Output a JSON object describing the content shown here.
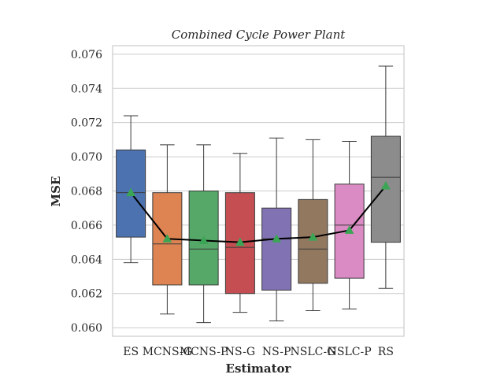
{
  "chart_data": {
    "type": "box",
    "title": "Combined Cycle Power Plant",
    "xlabel": "Estimator",
    "ylabel": "MSE",
    "ylim": [
      0.0595,
      0.0765
    ],
    "yticks": [
      0.06,
      0.062,
      0.064,
      0.066,
      0.068,
      0.07,
      0.072,
      0.074,
      0.076
    ],
    "ytick_labels": [
      "0.060",
      "0.062",
      "0.064",
      "0.066",
      "0.068",
      "0.070",
      "0.072",
      "0.074",
      "0.076"
    ],
    "grid": true,
    "categories": [
      "ES",
      "MCNS-G",
      "MCNS-P",
      "NS-G",
      "NS-P",
      "NSLC-G",
      "NSLC-P",
      "RS"
    ],
    "colors": [
      "#4c72b0",
      "#dd8452",
      "#55a868",
      "#c44e52",
      "#8172b3",
      "#937860",
      "#da8bc3",
      "#8c8c8c"
    ],
    "boxes": [
      {
        "whislo": 0.0638,
        "q1": 0.0653,
        "median": 0.0679,
        "q3": 0.0704,
        "whishi": 0.0724,
        "mean": 0.0679
      },
      {
        "whislo": 0.0608,
        "q1": 0.0625,
        "median": 0.0649,
        "q3": 0.0679,
        "whishi": 0.0707,
        "mean": 0.0652
      },
      {
        "whislo": 0.0603,
        "q1": 0.0625,
        "median": 0.0646,
        "q3": 0.068,
        "whishi": 0.0707,
        "mean": 0.0651
      },
      {
        "whislo": 0.0609,
        "q1": 0.062,
        "median": 0.0647,
        "q3": 0.0679,
        "whishi": 0.0702,
        "mean": 0.065
      },
      {
        "whislo": 0.0604,
        "q1": 0.0622,
        "median": 0.0652,
        "q3": 0.067,
        "whishi": 0.0711,
        "mean": 0.0652
      },
      {
        "whislo": 0.061,
        "q1": 0.0626,
        "median": 0.0646,
        "q3": 0.0675,
        "whishi": 0.071,
        "mean": 0.0653
      },
      {
        "whislo": 0.0611,
        "q1": 0.0629,
        "median": 0.066,
        "q3": 0.0684,
        "whishi": 0.0709,
        "mean": 0.0657
      },
      {
        "whislo": 0.0623,
        "q1": 0.065,
        "median": 0.0688,
        "q3": 0.0712,
        "whishi": 0.0753,
        "mean": 0.0683
      }
    ]
  }
}
